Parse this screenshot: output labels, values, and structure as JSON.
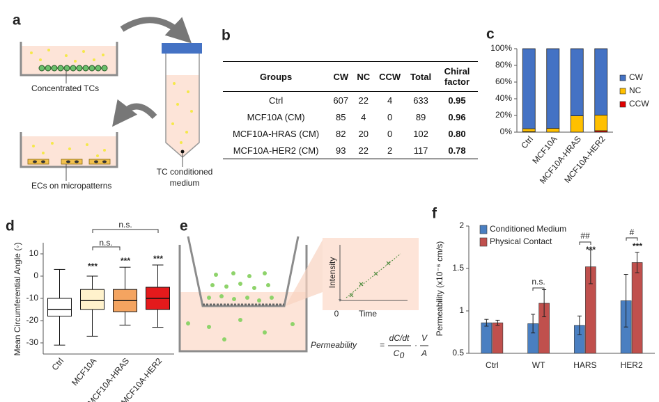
{
  "panel_labels": [
    "a",
    "b",
    "c",
    "d",
    "e",
    "f"
  ],
  "diagram_a": {
    "labels": [
      "Concentrated TCs",
      "ECs on micropatterns",
      "TC conditioned",
      "medium"
    ]
  },
  "table": {
    "header": [
      "Groups",
      "CW",
      "NC",
      "CCW",
      "Total",
      "Chiral factor"
    ],
    "rows": [
      [
        "Ctrl",
        "607",
        "22",
        "4",
        "633",
        "0.95"
      ],
      [
        "MCF10A (CM)",
        "85",
        "4",
        "0",
        "89",
        "0.96"
      ],
      [
        "MCF10A-HRAS (CM)",
        "82",
        "20",
        "0",
        "102",
        "0.80"
      ],
      [
        "MCF10A-HER2 (CM)",
        "93",
        "22",
        "2",
        "117",
        "0.78"
      ]
    ]
  },
  "diagram_e": {
    "inset_y_label": "Intensity",
    "inset_x_label": "Time",
    "inset_origin": "0",
    "formula": {
      "name": "Permeability",
      "equals": "=",
      "numerator1": "dC/dt",
      "denominator1": "C",
      "subscript": "0",
      "dot": "·",
      "numerator2": "V",
      "denominator2": "A"
    }
  },
  "chart_data": [
    {
      "type": "stacked_bar",
      "categories": [
        "Ctrl",
        "MCF10A",
        "MCF10A-HRAS",
        "MCF10A-HER2"
      ],
      "series": [
        {
          "name": "CW",
          "color": "#4472c4",
          "values": [
            95.9,
            95.5,
            80.4,
            79.5
          ]
        },
        {
          "name": "NC",
          "color": "#ffc000",
          "values": [
            3.5,
            4.5,
            19.6,
            18.8
          ]
        },
        {
          "name": "CCW",
          "color": "#e00000",
          "values": [
            0.6,
            0,
            0,
            1.7
          ]
        }
      ],
      "ylim": [
        0,
        100
      ],
      "yticks": [
        {
          "value": 0,
          "label": "0%"
        },
        {
          "value": 20,
          "label": "20%"
        },
        {
          "value": 40,
          "label": "40%"
        },
        {
          "value": 60,
          "label": "60%"
        },
        {
          "value": 80,
          "label": "80%"
        },
        {
          "value": 100,
          "label": "100%"
        }
      ],
      "legend": "right"
    },
    {
      "type": "box",
      "y_label": "Mean Circumferential Angle (◦)",
      "categories": [
        "Ctrl",
        "MCF10A",
        "MCF10A-HRAS",
        "MCF10A-HER2"
      ],
      "colors": [
        "#ffffff",
        "#fff2cc",
        "#f4a460",
        "#e41a1c"
      ],
      "whisker_low": [
        -31,
        -27,
        -22,
        -23
      ],
      "q1": [
        -18,
        -15,
        -16,
        -15
      ],
      "median": [
        -15,
        -11,
        -11,
        -10
      ],
      "q3": [
        -10,
        -6,
        -6,
        -5
      ],
      "whisker_high": [
        3,
        0,
        4,
        5
      ],
      "ylim": [
        -35,
        15
      ],
      "yticks": [
        -30,
        -20,
        -10,
        0,
        10
      ],
      "annotations": [
        "***",
        "***",
        "***",
        "n.s.",
        "n.s."
      ]
    },
    {
      "type": "bar",
      "y_label": "Permeability (x10⁻⁶ cm/s)",
      "categories": [
        "Ctrl",
        "WT",
        "HARS",
        "HER2"
      ],
      "series": [
        {
          "name": "Conditioned Medium",
          "color": "#4a7fc1",
          "values": [
            0.86,
            0.85,
            0.83,
            1.12
          ],
          "errors": [
            0.04,
            0.11,
            0.11,
            0.31
          ]
        },
        {
          "name": "Physical Contact",
          "color": "#c0504d",
          "values": [
            0.86,
            1.09,
            1.52,
            1.57
          ],
          "errors": [
            0.03,
            0.16,
            0.2,
            0.12
          ]
        }
      ],
      "ylim": [
        0.5,
        2
      ],
      "yticks": [
        0.5,
        1,
        1.5,
        2
      ],
      "legend": "top-left",
      "annotations": [
        "n.s.",
        "##",
        "***",
        "#",
        "***"
      ]
    }
  ]
}
